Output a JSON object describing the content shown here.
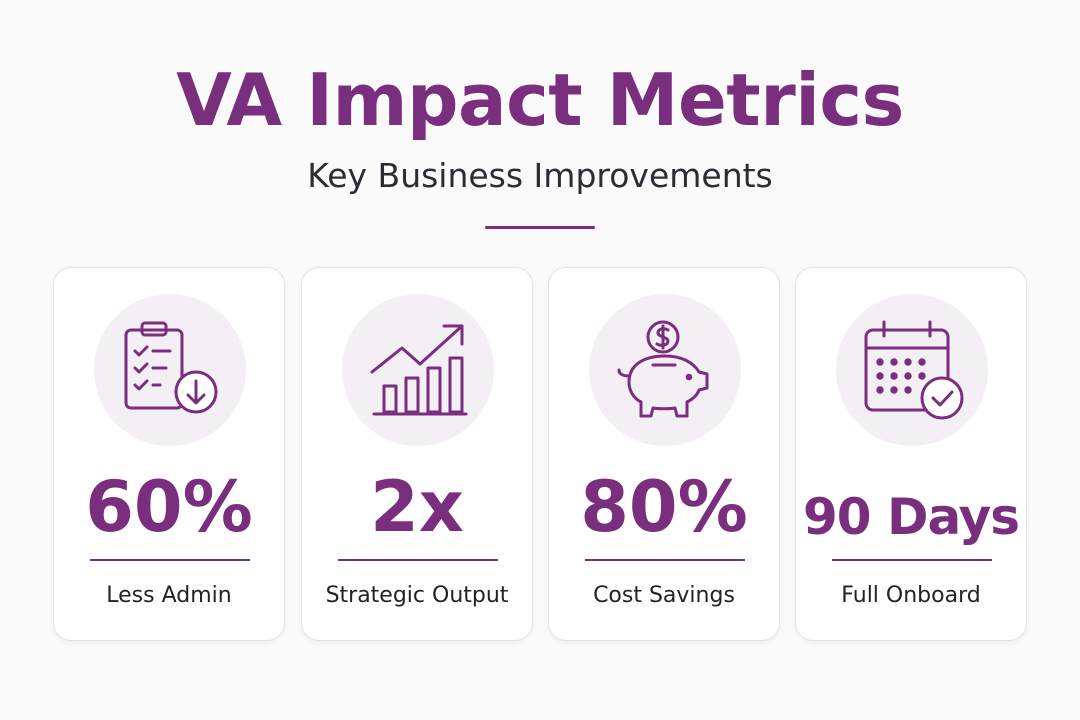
{
  "header": {
    "title": "VA Impact Metrics",
    "subtitle": "Key Business Improvements"
  },
  "colors": {
    "accent": "#7a2e7e",
    "icon_bg": "#f4eef5",
    "card_bg": "#ffffff",
    "text": "#2c2c35"
  },
  "metrics": [
    {
      "value": "60%",
      "label": "Less Admin",
      "icon": "clipboard-checklist-download-icon"
    },
    {
      "value": "2x",
      "label": "Strategic Output",
      "icon": "growth-chart-icon"
    },
    {
      "value": "80%",
      "label": "Cost Savings",
      "icon": "piggy-bank-dollar-icon"
    },
    {
      "value": "90 Days",
      "label": "Full Onboard",
      "icon": "calendar-check-icon"
    }
  ]
}
